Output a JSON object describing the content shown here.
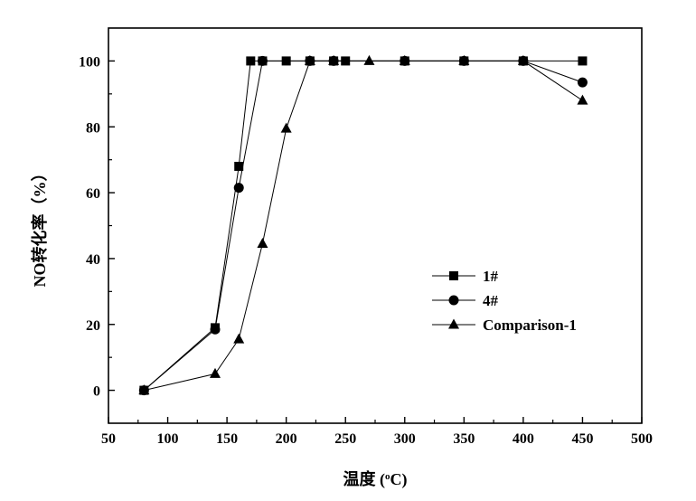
{
  "chart_data": {
    "type": "line",
    "xlabel_main": "温度",
    "xlabel_unit_prefix": " (",
    "xlabel_unit_sup": "o",
    "xlabel_unit_suffix": "C)",
    "ylabel": "NO转化率（%）",
    "xlim": [
      50,
      500
    ],
    "ylim": [
      -10,
      110
    ],
    "xticks": [
      50,
      100,
      150,
      200,
      250,
      300,
      350,
      400,
      450,
      500
    ],
    "yticks": [
      0,
      20,
      40,
      60,
      80,
      100
    ],
    "legend_position": "center-right",
    "series": [
      {
        "name": "1#",
        "marker": "square",
        "x": [
          80,
          140,
          160,
          170,
          180,
          200,
          220,
          240,
          250,
          300,
          350,
          400,
          450
        ],
        "y": [
          0,
          19,
          68,
          100,
          100,
          100,
          100,
          100,
          100,
          100,
          100,
          100,
          100
        ]
      },
      {
        "name": "4#",
        "marker": "circle",
        "x": [
          80,
          140,
          160,
          180,
          220,
          240,
          300,
          350,
          400,
          450
        ],
        "y": [
          0,
          18.5,
          61.5,
          100,
          100,
          100,
          100,
          100,
          100,
          93.5
        ]
      },
      {
        "name": "Comparison-1",
        "marker": "triangle",
        "x": [
          80,
          140,
          160,
          180,
          200,
          220,
          240,
          270,
          300,
          350,
          400,
          450
        ],
        "y": [
          0,
          5,
          15.5,
          44.5,
          79.5,
          100,
          100,
          100,
          100,
          100,
          100,
          88
        ]
      }
    ]
  }
}
